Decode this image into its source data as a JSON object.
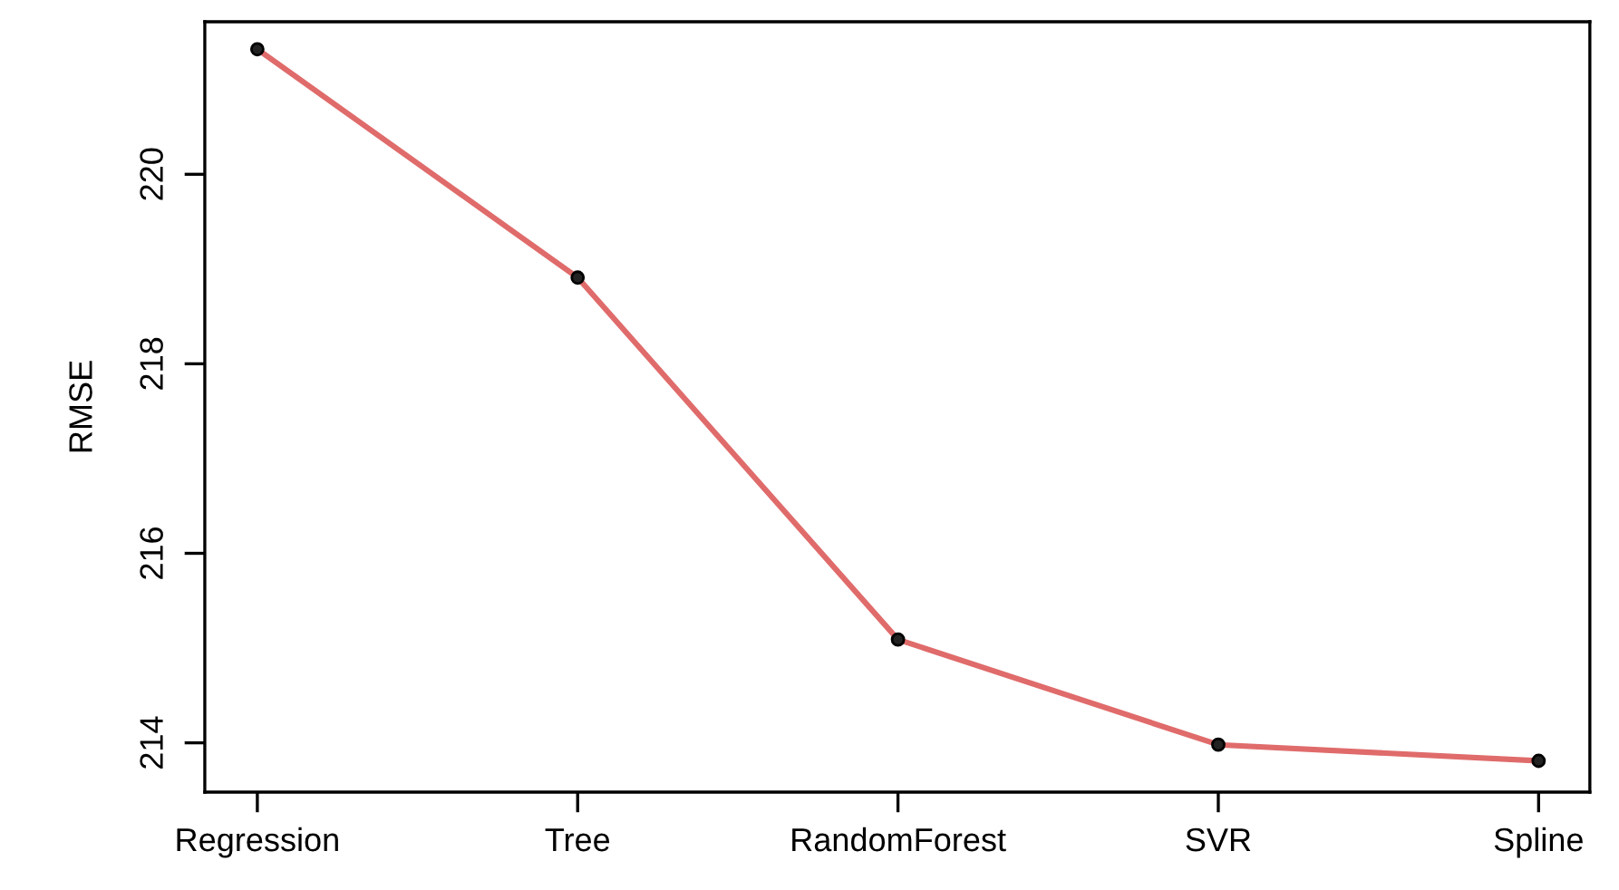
{
  "chart_data": {
    "type": "line",
    "ylabel": "RMSE",
    "categories": [
      "Regression",
      "Tree",
      "RandomForest",
      "SVR",
      "Spline"
    ],
    "series": [
      {
        "color": "#e06b6b",
        "values": [
          221.32,
          218.91,
          215.09,
          213.98,
          213.81
        ]
      }
    ],
    "ylim": [
      213.48,
      221.61
    ],
    "yticks": [
      214,
      216,
      218,
      220
    ],
    "grid": false,
    "legend": false,
    "marker": "circle",
    "line_style": "solid"
  }
}
